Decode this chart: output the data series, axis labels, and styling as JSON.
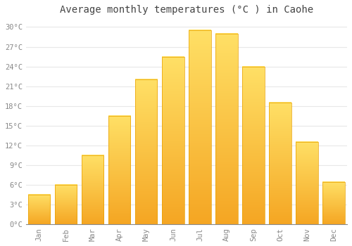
{
  "title": "Average monthly temperatures (°C ) in Caohe",
  "months": [
    "Jan",
    "Feb",
    "Mar",
    "Apr",
    "May",
    "Jun",
    "Jul",
    "Aug",
    "Sep",
    "Oct",
    "Nov",
    "Dec"
  ],
  "values": [
    4.5,
    6.0,
    10.5,
    16.5,
    22.0,
    25.5,
    29.5,
    29.0,
    24.0,
    18.5,
    12.5,
    6.5
  ],
  "bar_color_bottom": "#F5A623",
  "bar_color_top": "#FFE066",
  "background_color": "#ffffff",
  "grid_color": "#e8e8e8",
  "ylim": [
    0,
    31
  ],
  "yticks": [
    0,
    3,
    6,
    9,
    12,
    15,
    18,
    21,
    24,
    27,
    30
  ],
  "title_fontsize": 10,
  "bar_width": 0.82
}
